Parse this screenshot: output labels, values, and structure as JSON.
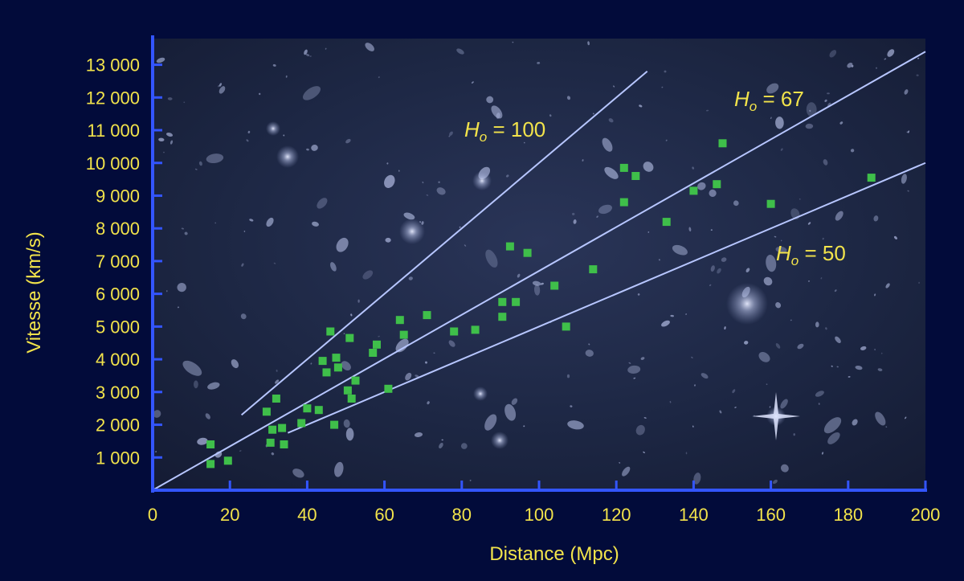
{
  "chart_data": {
    "type": "scatter",
    "title": "",
    "xlabel": "Distance (Mpc)",
    "ylabel": "Vitesse (km/s)",
    "xlim": [
      0,
      200
    ],
    "ylim": [
      0,
      13800
    ],
    "xticks": [
      0,
      20,
      40,
      60,
      80,
      100,
      120,
      140,
      160,
      180,
      200
    ],
    "xtick_labels": [
      "0",
      "20",
      "40",
      "60",
      "80",
      "100",
      "120",
      "140",
      "160",
      "180",
      "200"
    ],
    "yticks": [
      1000,
      2000,
      3000,
      4000,
      5000,
      6000,
      7000,
      8000,
      9000,
      10000,
      11000,
      12000,
      13000
    ],
    "ytick_labels": [
      "1 000",
      "2 000",
      "3 000",
      "4 000",
      "5 000",
      "6 000",
      "7 000",
      "8 000",
      "9 000",
      "10 000",
      "11 000",
      "12 000",
      "13 000"
    ],
    "grid": false,
    "background": "deep-field galaxy image",
    "colors": {
      "page_background": "#020b3a",
      "axis": "#3355ff",
      "tick_text": "#f2e34b",
      "points": "#3fbf4a",
      "fit_lines": "#b7c6ff"
    },
    "series": [
      {
        "marker": "square",
        "points": [
          [
            15,
            1400
          ],
          [
            15,
            800
          ],
          [
            19.5,
            900
          ],
          [
            29.5,
            2400
          ],
          [
            30.5,
            1450
          ],
          [
            31,
            1850
          ],
          [
            32,
            2800
          ],
          [
            33.5,
            1900
          ],
          [
            34,
            1400
          ],
          [
            38.5,
            2050
          ],
          [
            40,
            2500
          ],
          [
            43,
            2450
          ],
          [
            44,
            3950
          ],
          [
            45,
            3600
          ],
          [
            46,
            4850
          ],
          [
            47,
            2000
          ],
          [
            47.5,
            4050
          ],
          [
            48,
            3750
          ],
          [
            50.5,
            3050
          ],
          [
            51,
            4650
          ],
          [
            51.5,
            2800
          ],
          [
            52.5,
            3350
          ],
          [
            57,
            4200
          ],
          [
            58,
            4450
          ],
          [
            61,
            3100
          ],
          [
            64,
            5200
          ],
          [
            65,
            4750
          ],
          [
            71,
            5350
          ],
          [
            78,
            4850
          ],
          [
            83.5,
            4900
          ],
          [
            90.5,
            5750
          ],
          [
            90.5,
            5300
          ],
          [
            92.5,
            7450
          ],
          [
            94,
            5750
          ],
          [
            97,
            7250
          ],
          [
            104,
            6250
          ],
          [
            107,
            5000
          ],
          [
            114,
            6750
          ],
          [
            122,
            9850
          ],
          [
            122,
            8800
          ],
          [
            125,
            9600
          ],
          [
            133,
            8200
          ],
          [
            140,
            9150
          ],
          [
            146,
            9350
          ],
          [
            147.5,
            10600
          ],
          [
            160,
            8750
          ],
          [
            186,
            9550
          ]
        ]
      }
    ],
    "fit_lines": [
      {
        "label_prefix": "H",
        "label_sub": "o",
        "label_value": "= 100",
        "H0": 100,
        "x_range": [
          23,
          128
        ]
      },
      {
        "label_prefix": "H",
        "label_sub": "o",
        "label_value": "= 67",
        "H0": 67,
        "x_range": [
          0,
          200
        ]
      },
      {
        "label_prefix": "H",
        "label_sub": "o",
        "label_value": "= 50",
        "H0": 50,
        "x_range": [
          35,
          200
        ]
      }
    ]
  }
}
